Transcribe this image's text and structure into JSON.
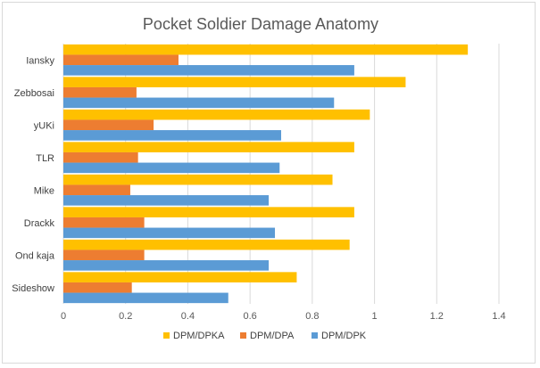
{
  "chart_data": {
    "type": "bar",
    "orientation": "horizontal",
    "title": "Pocket Soldier Damage Anatomy",
    "xlabel": "",
    "ylabel": "",
    "categories": [
      "Iansky",
      "Zebbosai",
      "yUKi",
      "TLR",
      "Mike",
      "Drackk",
      "Ond kaja",
      "Sideshow"
    ],
    "series": [
      {
        "name": "DPM/DPKA",
        "color": "#ffc000",
        "values": [
          1.3,
          1.1,
          0.985,
          0.935,
          0.865,
          0.935,
          0.92,
          0.75
        ]
      },
      {
        "name": "DPM/DPA",
        "color": "#ed7d31",
        "values": [
          0.37,
          0.235,
          0.29,
          0.24,
          0.215,
          0.26,
          0.26,
          0.22
        ]
      },
      {
        "name": "DPM/DPK",
        "color": "#5b9bd5",
        "values": [
          0.935,
          0.87,
          0.7,
          0.695,
          0.66,
          0.68,
          0.66,
          0.53
        ]
      }
    ],
    "xlim": [
      0,
      1.4
    ],
    "xticks": [
      0,
      0.2,
      0.4,
      0.6,
      0.8,
      1,
      1.2,
      1.4
    ],
    "grid": true,
    "legend_position": "bottom"
  }
}
